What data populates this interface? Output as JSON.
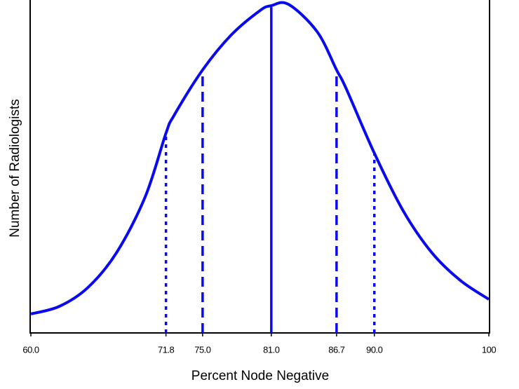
{
  "chart_data": {
    "type": "line",
    "xlabel": "Percent Node Negative",
    "ylabel": "Number of Radiologists",
    "x": [
      60,
      62.5,
      65,
      67.5,
      70,
      71.8,
      72.5,
      75,
      77.5,
      80,
      81,
      82.5,
      85,
      86.7,
      87.5,
      90,
      92.5,
      95,
      97.5,
      100
    ],
    "values": [
      5.7,
      8.0,
      13.7,
      24.2,
      41.0,
      60.0,
      65.3,
      79.0,
      89.5,
      96.8,
      98.3,
      98.7,
      90.5,
      79.0,
      73.7,
      54.0,
      36.8,
      24.2,
      15.8,
      10.1
    ],
    "color": "#0a0aee",
    "xlim": [
      60,
      100
    ],
    "ylim": [
      0,
      100
    ],
    "xticks": [
      {
        "value": 60,
        "label": "60.0"
      },
      71.8,
      {
        "value": 75,
        "label": "75.0"
      },
      {
        "value": 81,
        "label": "81.0"
      },
      86.7,
      {
        "value": 90,
        "label": "90.0"
      },
      100
    ],
    "vlines": [
      {
        "x": 71.8,
        "style": "dotted"
      },
      {
        "x": 75,
        "style": "dashed"
      },
      {
        "x": 81,
        "style": "solid"
      },
      {
        "x": 86.7,
        "style": "dashed"
      },
      {
        "x": 90,
        "style": "dotted"
      }
    ]
  }
}
